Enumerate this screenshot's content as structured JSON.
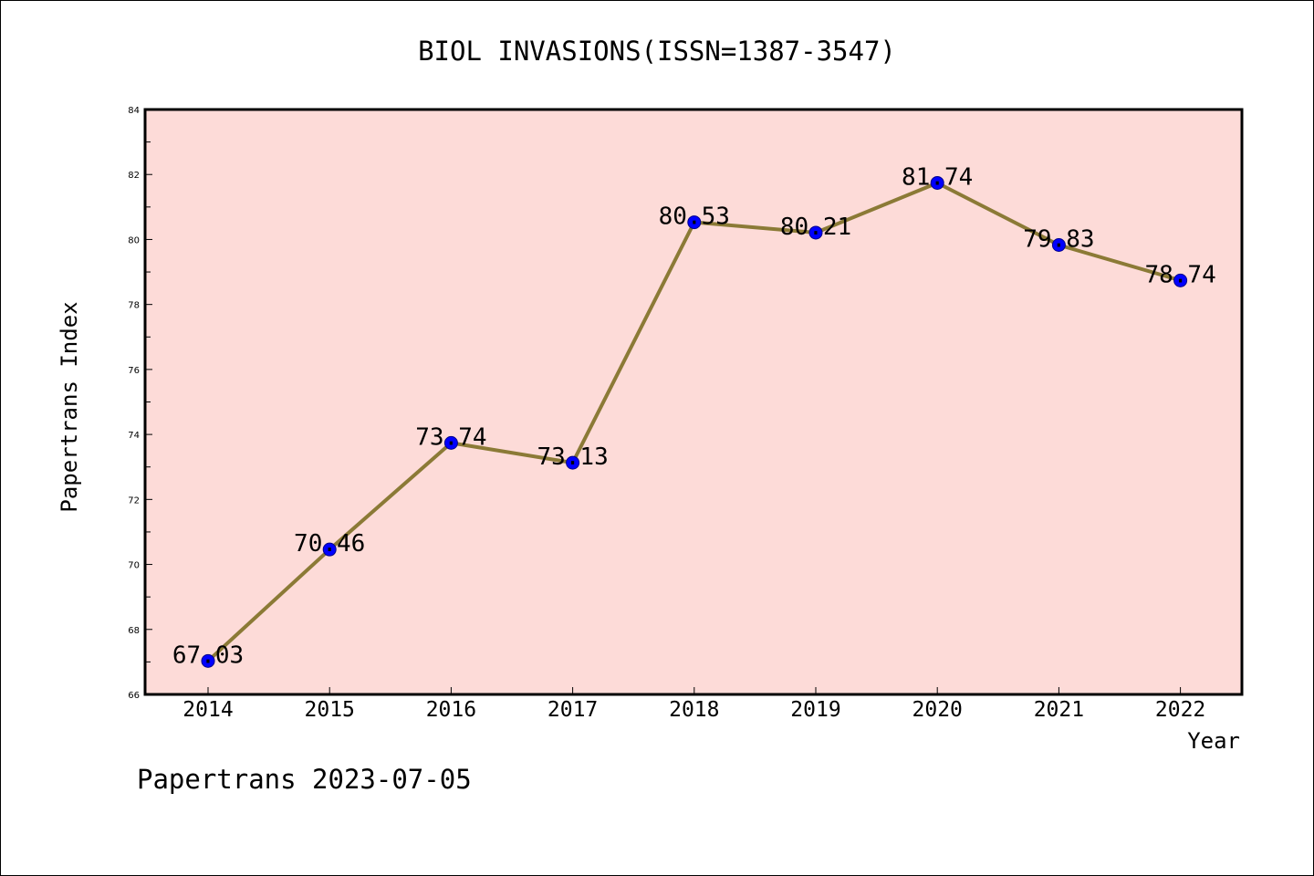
{
  "colors": {
    "plot_background": "#fddbd8",
    "line": "#8b7a36",
    "marker_fill": "#0000ff",
    "marker_stroke": "#00008b",
    "axis": "#000000"
  },
  "footer": "Papertrans 2023-07-05",
  "chart_data": {
    "type": "line",
    "title": "BIOL INVASIONS(ISSN=1387-3547)",
    "xlabel": "Year",
    "ylabel": "Papertrans Index",
    "categories": [
      "2014",
      "2015",
      "2016",
      "2017",
      "2018",
      "2019",
      "2020",
      "2021",
      "2022"
    ],
    "values": [
      67.03,
      70.46,
      73.74,
      73.13,
      80.53,
      80.21,
      81.74,
      79.83,
      78.74
    ],
    "data_labels": [
      "67.03",
      "70.46",
      "73.74",
      "73.13",
      "80.53",
      "80.21",
      "81.74",
      "79.83",
      "78.74"
    ],
    "ylim": [
      66,
      84
    ],
    "y_ticks": [
      "66",
      "68",
      "70",
      "72",
      "74",
      "76",
      "78",
      "80",
      "82",
      "84"
    ],
    "grid": false,
    "legend": false
  }
}
